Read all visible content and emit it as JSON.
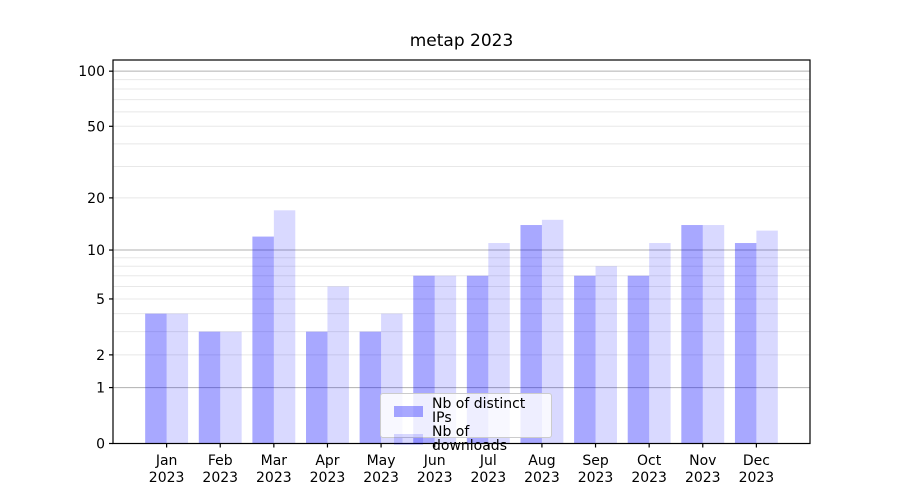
{
  "figure": {
    "title": "metap 2023"
  },
  "chart_data": {
    "type": "bar",
    "title": "metap 2023",
    "categories": [
      "Jan",
      "Feb",
      "Mar",
      "Apr",
      "May",
      "Jun",
      "Jul",
      "Aug",
      "Sep",
      "Oct",
      "Nov",
      "Dec"
    ],
    "category_year": "2023",
    "series": [
      {
        "name": "Nb of distinct IPs",
        "color": "rgba(0,0,255,0.34)",
        "values": [
          4,
          3,
          12,
          3,
          3,
          7,
          7,
          14,
          7,
          7,
          14,
          11
        ]
      },
      {
        "name": "Nb of downloads",
        "color": "rgba(0,0,255,0.15)",
        "values": [
          4,
          3,
          17,
          6,
          4,
          7,
          11,
          15,
          8,
          11,
          14,
          13
        ]
      }
    ],
    "y_axis": {
      "scale": "log1p",
      "ylim": [
        0,
        115
      ],
      "tick_values": [
        0,
        1,
        2,
        5,
        10,
        20,
        50,
        100
      ],
      "major_gridlines": [
        1,
        10,
        100
      ],
      "minor_gridlines": [
        2,
        3,
        4,
        5,
        6,
        7,
        8,
        9,
        20,
        30,
        40,
        50,
        60,
        70,
        80,
        90
      ]
    },
    "xlabel": "",
    "ylabel": "",
    "grid": "both",
    "legend": {
      "position": "lower center"
    },
    "colors": {
      "major_grid": "#b0b0b0",
      "minor_grid": "#e8e8e8",
      "axis": "#000000",
      "text": "#000000"
    }
  }
}
